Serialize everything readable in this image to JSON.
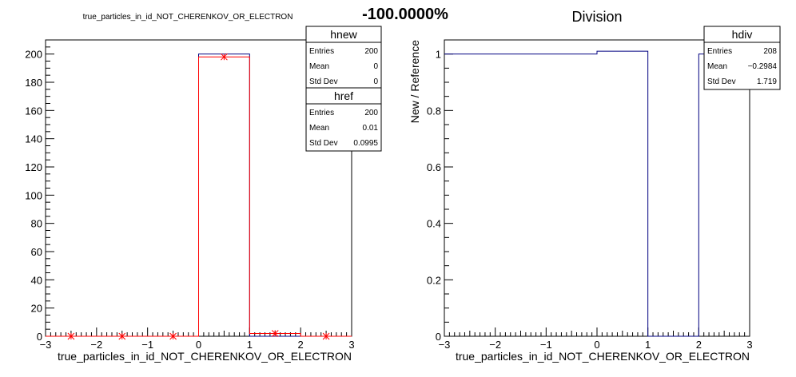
{
  "header": {
    "left_title": "true_particles_in_id_NOT_CHERENKOV_OR_ELECTRON",
    "center_title": "-100.0000%",
    "right_title": "Division"
  },
  "chart_data": [
    {
      "type": "bar",
      "title": "true_particles_in_id_NOT_CHERENKOV_OR_ELECTRON",
      "xlabel": "true_particles_in_id_NOT_CHERENKOV_OR_ELECTRON",
      "ylabel": "",
      "xlim": [
        -3,
        3
      ],
      "ylim": [
        0,
        210
      ],
      "xticks": [
        "−3",
        "−2",
        "−1",
        "0",
        "1",
        "2",
        "3"
      ],
      "yticks": [
        "0",
        "20",
        "40",
        "60",
        "80",
        "100",
        "120",
        "140",
        "160",
        "180",
        "200"
      ],
      "bin_edges": [
        -3,
        -2,
        -1,
        0,
        1,
        2,
        3
      ],
      "series": [
        {
          "name": "hnew",
          "color": "#000080",
          "values": [
            0,
            0,
            0,
            200,
            0,
            0
          ]
        },
        {
          "name": "href",
          "color": "#ff0000",
          "values": [
            0,
            0,
            0,
            198,
            2,
            0
          ]
        }
      ],
      "stats": [
        {
          "name": "hnew",
          "rows": [
            [
              "Entries",
              "200"
            ],
            [
              "Mean",
              "0"
            ],
            [
              "Std Dev",
              "0"
            ]
          ]
        },
        {
          "name": "href",
          "rows": [
            [
              "Entries",
              "200"
            ],
            [
              "Mean",
              "0.01"
            ],
            [
              "Std Dev",
              "0.0995"
            ]
          ]
        }
      ]
    },
    {
      "type": "bar",
      "title": "Division",
      "xlabel": "true_particles_in_id_NOT_CHERENKOV_OR_ELECTRON",
      "ylabel": "New / Reference",
      "xlim": [
        -3,
        3
      ],
      "ylim": [
        0,
        1.05
      ],
      "xticks": [
        "−3",
        "−2",
        "−1",
        "0",
        "1",
        "2",
        "3"
      ],
      "yticks": [
        "0",
        "0.2",
        "0.4",
        "0.6",
        "0.8",
        "1"
      ],
      "bin_edges": [
        -3,
        -2,
        -1,
        0,
        1,
        2,
        3
      ],
      "series": [
        {
          "name": "hdiv",
          "color": "#000080",
          "values": [
            1,
            1,
            1,
            1.0101,
            0,
            1
          ]
        }
      ],
      "stats": [
        {
          "name": "hdiv",
          "rows": [
            [
              "Entries",
              "208"
            ],
            [
              "Mean",
              "−0.2984"
            ],
            [
              "Std Dev",
              "1.719"
            ]
          ]
        }
      ]
    }
  ]
}
